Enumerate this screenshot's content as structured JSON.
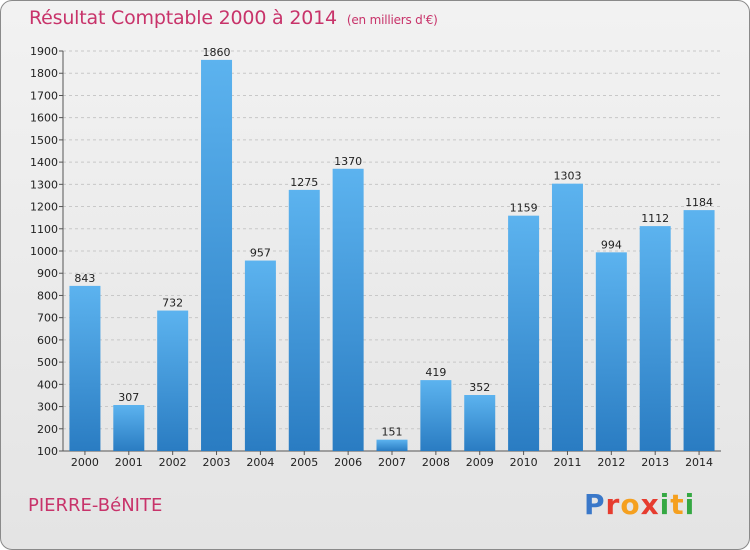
{
  "header": {
    "title": "Résultat Comptable 2000 à 2014",
    "subtitle": "(en milliers d'€)"
  },
  "footer": {
    "city": "PIERRE-BéNITE",
    "brand_letters": [
      "P",
      "r",
      "o",
      "x",
      "i",
      "t",
      "i"
    ],
    "brand_colors": [
      "#3a78c9",
      "#e63c2f",
      "#f5a01f",
      "#e63c2f",
      "#35a843",
      "#f5a01f",
      "#35a843"
    ]
  },
  "chart_data": {
    "type": "bar",
    "categories": [
      "2000",
      "2001",
      "2002",
      "2003",
      "2004",
      "2005",
      "2006",
      "2007",
      "2008",
      "2009",
      "2010",
      "2011",
      "2012",
      "2013",
      "2014"
    ],
    "values": [
      843,
      307,
      732,
      1860,
      957,
      1275,
      1370,
      151,
      419,
      352,
      1159,
      1303,
      994,
      1112,
      1184
    ],
    "value_labels": [
      "843",
      "307",
      "732",
      "1860",
      "957",
      "1275",
      "1370",
      "151",
      "419",
      "352",
      "1159",
      "1303",
      "994",
      "1112",
      "1184"
    ],
    "title": "Résultat Comptable 2000 à 2014",
    "xlabel": "",
    "ylabel": "",
    "ylim": [
      100,
      1900
    ],
    "yticks": [
      100,
      200,
      300,
      400,
      500,
      600,
      700,
      800,
      900,
      1000,
      1100,
      1200,
      1300,
      1400,
      1500,
      1600,
      1700,
      1800,
      1900
    ],
    "ytick_labels": [
      "100",
      "200",
      "300",
      "400",
      "500",
      "600",
      "700",
      "800",
      "900",
      "1000",
      "1100",
      "1200",
      "1300",
      "1400",
      "1500",
      "1600",
      "1700",
      "1800",
      "1900"
    ],
    "grid": true,
    "bar_color": "#3d93d8"
  }
}
